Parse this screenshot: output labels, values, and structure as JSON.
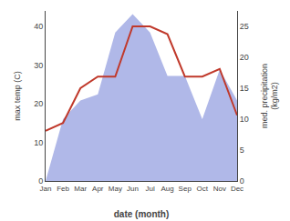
{
  "chart_data": {
    "type": "line",
    "categories": [
      "Jan",
      "Feb",
      "Mar",
      "Apr",
      "May",
      "Jun",
      "Jul",
      "Aug",
      "Sep",
      "Oct",
      "Nov",
      "Dec"
    ],
    "xlabel": "date (month)",
    "ylabel": "max temp (C)",
    "y2label": "med. precipitation\n(kg/m2)",
    "series": [
      {
        "type": "area",
        "axis": "y2",
        "color": "#b0b8e8",
        "values": [
          0,
          10,
          13,
          14,
          24,
          27,
          24,
          17,
          17,
          10,
          18,
          13
        ]
      },
      {
        "type": "line",
        "color": "#c0392b",
        "values": [
          13,
          15,
          24,
          27,
          27,
          40,
          40,
          38,
          27,
          27,
          29,
          17
        ]
      }
    ],
    "ylim": [
      0,
      44
    ],
    "yticks": [
      0,
      10,
      20,
      30,
      40
    ],
    "y2lim": [
      0,
      27.5
    ],
    "y2ticks": [
      0,
      5,
      10,
      15,
      20,
      25
    ],
    "grid": false
  }
}
